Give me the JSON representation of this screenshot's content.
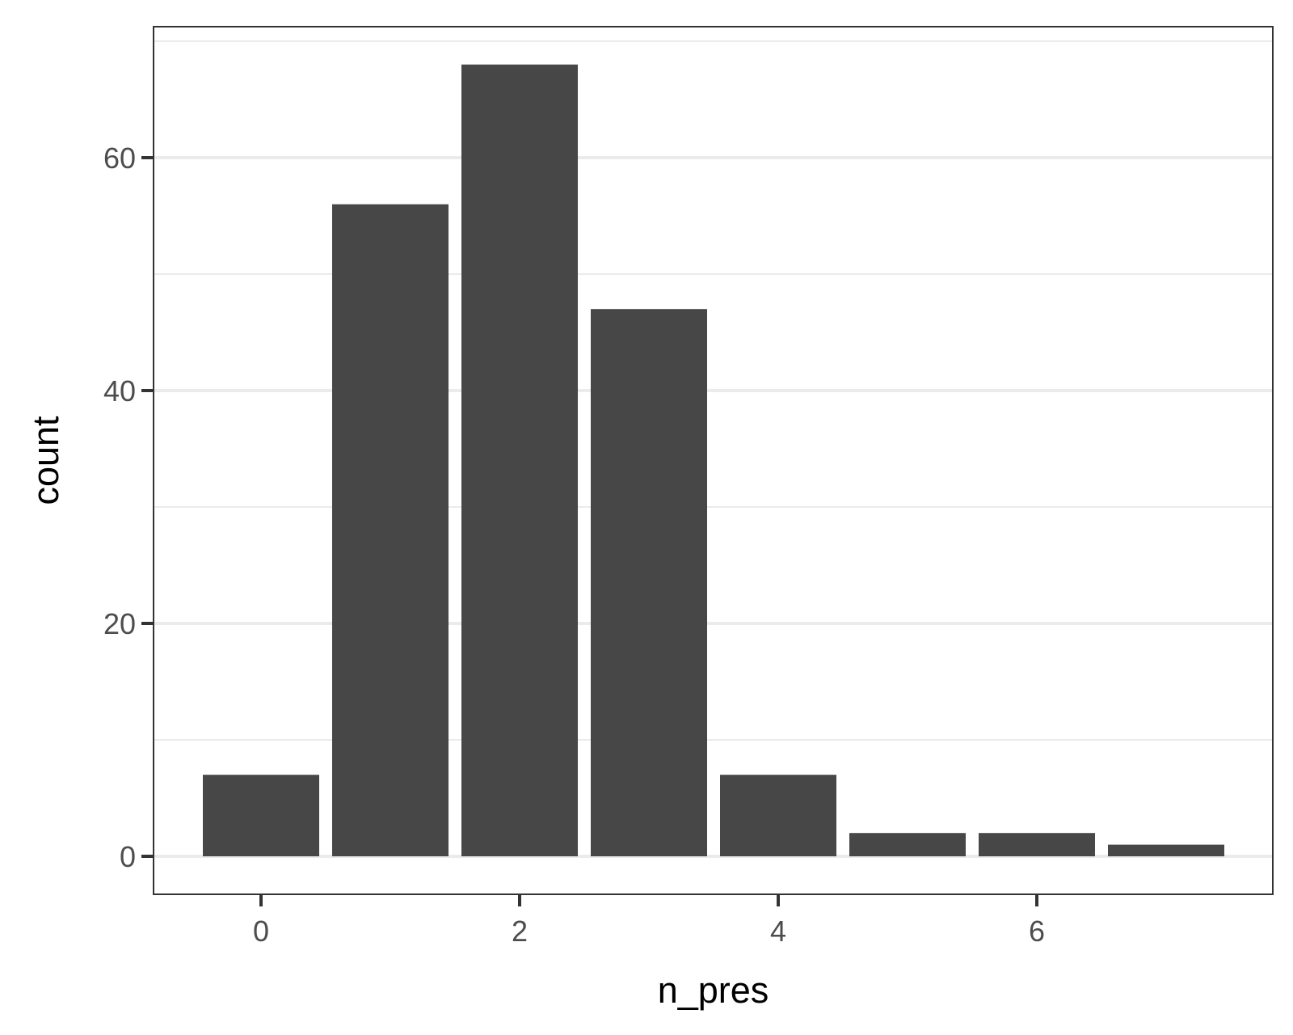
{
  "chart_data": {
    "type": "bar",
    "xlabel": "n_pres",
    "ylabel": "count",
    "x": [
      0,
      1,
      2,
      3,
      4,
      5,
      6,
      7
    ],
    "values": [
      7,
      56,
      68,
      47,
      7,
      2,
      2,
      1
    ],
    "xlim": [
      -0.5,
      7.5
    ],
    "ylim": [
      0,
      70
    ],
    "x_ticks": [
      0,
      2,
      4,
      6
    ],
    "y_ticks": [
      0,
      20,
      40,
      60
    ],
    "grid": "horizontal",
    "legend": "none",
    "colors": {
      "bar": "#474747",
      "grid": "#ebebeb",
      "panel_border": "#333333",
      "tick": "#333333"
    }
  }
}
